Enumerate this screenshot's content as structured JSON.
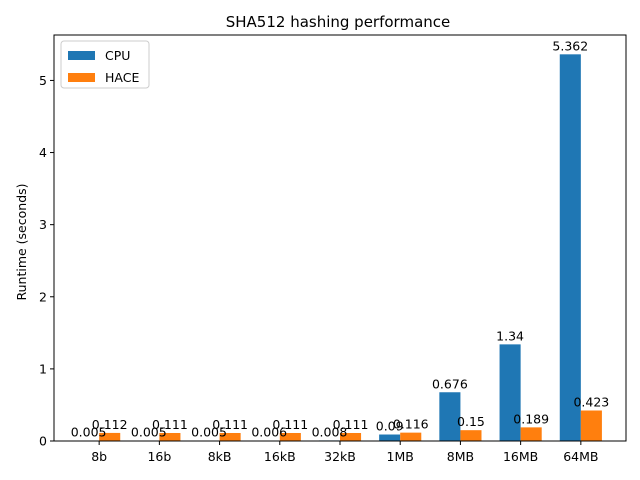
{
  "chart_data": {
    "type": "bar",
    "title": "SHA512 hashing performance",
    "xlabel": "",
    "ylabel": "Runtime (seconds)",
    "categories": [
      "8b",
      "16b",
      "8kB",
      "16kB",
      "32kB",
      "1MB",
      "8MB",
      "16MB",
      "64MB"
    ],
    "series": [
      {
        "name": "CPU",
        "color": "#1f77b4",
        "values": [
          0.005,
          0.005,
          0.005,
          0.006,
          0.008,
          0.09,
          0.676,
          1.34,
          5.362
        ],
        "labels": [
          "0.005",
          "0.005",
          "0.005",
          "0.006",
          "0.008",
          "0.09",
          "0.676",
          "1.34",
          "5.362"
        ]
      },
      {
        "name": "HACE",
        "color": "#ff7f0e",
        "values": [
          0.112,
          0.111,
          0.111,
          0.111,
          0.111,
          0.116,
          0.15,
          0.189,
          0.423
        ],
        "labels": [
          "0.112",
          "0.111",
          "0.111",
          "0.111",
          "0.111",
          "0.116",
          "0.15",
          "0.189",
          "0.423"
        ]
      }
    ],
    "ylim": [
      0,
      5.63
    ],
    "yticks": [
      0,
      1,
      2,
      3,
      4,
      5
    ],
    "ytick_labels": [
      "0",
      "1",
      "2",
      "3",
      "4",
      "5"
    ],
    "grid": false,
    "legend_position": "top-left"
  }
}
